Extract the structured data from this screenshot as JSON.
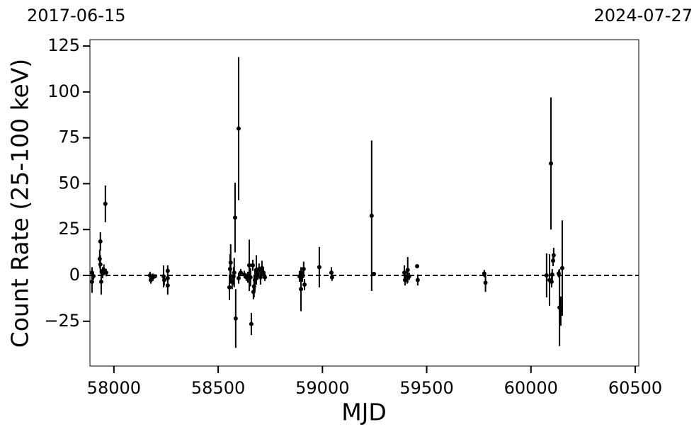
{
  "chart_data": {
    "type": "errorbar-scatter",
    "x_label": "MJD",
    "y_label": "Count Rate (25-100 keV)",
    "annotations": [
      "2017-06-15",
      "2024-07-27"
    ],
    "x": [
      57895,
      57895,
      57902,
      57932,
      57935,
      57935,
      57939,
      57946,
      57952,
      57959,
      57963,
      58173,
      58177,
      58187,
      58197,
      58238,
      58241,
      58258,
      58258,
      58258,
      58554,
      58557,
      58560,
      58567,
      58574,
      58581,
      58584,
      58577,
      58598,
      58598,
      58608,
      58625,
      58635,
      58642,
      58649,
      58655,
      58659,
      58666,
      58669,
      58672,
      58676,
      58683,
      58689,
      58696,
      58703,
      58710,
      58717,
      58724,
      58890,
      58897,
      58904,
      58910,
      58914,
      58985,
      59043,
      59046,
      59236,
      59247,
      59393,
      59396,
      59406,
      59409,
      59416,
      59454,
      59457,
      59776,
      59782,
      60075,
      60089,
      60096,
      60099,
      60102,
      60106,
      60109,
      60137,
      60143,
      60150,
      60133
    ],
    "values": [
      1.5,
      -3.5,
      -0.4,
      9,
      18.5,
      6,
      -3.5,
      1.5,
      3,
      39,
      1.5,
      0,
      -2.5,
      -1,
      -0.5,
      -0.5,
      -2.5,
      2.5,
      -5.5,
      -1.5,
      -6.5,
      3.5,
      7,
      -3.5,
      -0.5,
      31.5,
      -23.5,
      1.5,
      80,
      -1.5,
      1.5,
      0.5,
      -1,
      -1,
      5.5,
      -1,
      -26.5,
      5.5,
      -9,
      -6,
      -2.5,
      3,
      0.5,
      3.5,
      -1,
      4,
      1.5,
      -1,
      -0.5,
      -7.5,
      -0.5,
      3.5,
      -5,
      4.5,
      1.5,
      -1,
      32.5,
      0.8,
      1.5,
      -2.5,
      -0.5,
      3,
      -0.5,
      5,
      -2.5,
      1,
      -4,
      0,
      -2.5,
      61,
      -3.5,
      0.5,
      8,
      11,
      -17.5,
      -19.5,
      4,
      1
    ],
    "errors": [
      3,
      6,
      2,
      5,
      5,
      5,
      7,
      3,
      3,
      10,
      2,
      2,
      2,
      2,
      1,
      6,
      3,
      3,
      5,
      2,
      7,
      8,
      10,
      4,
      5,
      19,
      16,
      8,
      39,
      3,
      2,
      2,
      2,
      3,
      14,
      5,
      6,
      3,
      4,
      6,
      6,
      8,
      3,
      3,
      4,
      4,
      3,
      2,
      3,
      12,
      3,
      4,
      3,
      11,
      3,
      2,
      41,
      1,
      4,
      3,
      4,
      7,
      2,
      1,
      3,
      2,
      5,
      12,
      14,
      36,
      3,
      3,
      3,
      4,
      21,
      8,
      26,
      2
    ],
    "color": "#000000",
    "hline": 0,
    "xlim": [
      57885,
      60517
    ],
    "ylim": [
      -49.4,
      128.5
    ],
    "xticks": [
      58000,
      58500,
      59000,
      59500,
      60000,
      60500
    ],
    "yticks": [
      {
        "value": -25,
        "label": "−25"
      },
      0,
      25,
      50,
      75,
      100,
      125
    ]
  }
}
